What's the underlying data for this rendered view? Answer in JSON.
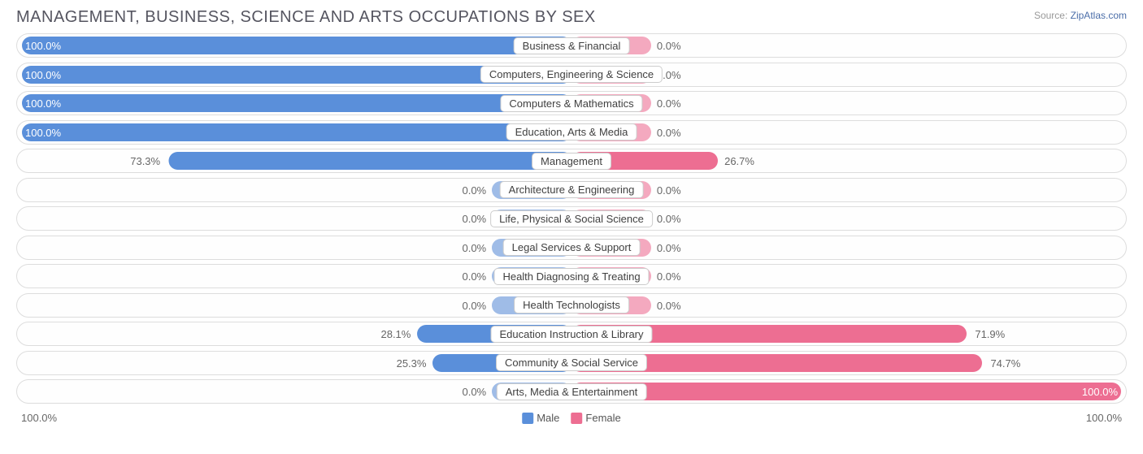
{
  "header": {
    "title": "MANAGEMENT, BUSINESS, SCIENCE AND ARTS OCCUPATIONS BY SEX",
    "source_prefix": "Source: ",
    "source_link": "ZipAtlas.com"
  },
  "chart": {
    "type": "diverging-bar",
    "colors": {
      "male_strong": "#5a8fda",
      "male_faded": "#9fbce7",
      "female_strong": "#ed6e92",
      "female_faded": "#f4a9bf",
      "row_border": "#dddddd",
      "label_border": "#cccccc",
      "text": "#666666",
      "background": "#ffffff"
    },
    "axis": {
      "left_label": "100.0%",
      "right_label": "100.0%"
    },
    "legend": [
      {
        "label": "Male",
        "color": "#5a8fda"
      },
      {
        "label": "Female",
        "color": "#ed6e92"
      }
    ],
    "default_bar_pct": 14.5,
    "rows": [
      {
        "category": "Business & Financial",
        "male": 100.0,
        "female": 0.0
      },
      {
        "category": "Computers, Engineering & Science",
        "male": 100.0,
        "female": 0.0
      },
      {
        "category": "Computers & Mathematics",
        "male": 100.0,
        "female": 0.0
      },
      {
        "category": "Education, Arts & Media",
        "male": 100.0,
        "female": 0.0
      },
      {
        "category": "Management",
        "male": 73.3,
        "female": 26.7
      },
      {
        "category": "Architecture & Engineering",
        "male": 0.0,
        "female": 0.0
      },
      {
        "category": "Life, Physical & Social Science",
        "male": 0.0,
        "female": 0.0
      },
      {
        "category": "Legal Services & Support",
        "male": 0.0,
        "female": 0.0
      },
      {
        "category": "Health Diagnosing & Treating",
        "male": 0.0,
        "female": 0.0
      },
      {
        "category": "Health Technologists",
        "male": 0.0,
        "female": 0.0
      },
      {
        "category": "Education Instruction & Library",
        "male": 28.1,
        "female": 71.9
      },
      {
        "category": "Community & Social Service",
        "male": 25.3,
        "female": 74.7
      },
      {
        "category": "Arts, Media & Entertainment",
        "male": 0.0,
        "female": 100.0
      }
    ]
  }
}
